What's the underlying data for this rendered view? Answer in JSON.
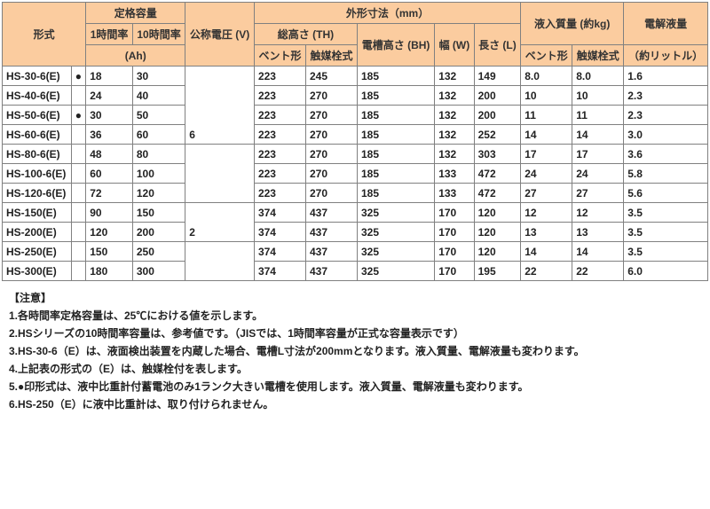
{
  "headers": {
    "model": "形式",
    "rated_capacity": "定格容量",
    "rate_1h": "1時間率",
    "rate_10h": "10時間率",
    "ah": "(Ah)",
    "nominal_voltage": "公称電圧 (V)",
    "dimensions": "外形寸法（mm）",
    "total_height": "総高さ (TH)",
    "vent_type": "ベント形",
    "catalyst_type": "触媒栓式",
    "box_height": "電槽高さ (BH)",
    "width": "幅 (W)",
    "length": "長さ (L)",
    "filled_mass": "液入質量 (約kg)",
    "electrolyte_volume": "電解液量",
    "liters": "（約リットル）"
  },
  "voltage_6": "6",
  "voltage_2": "2",
  "rows": [
    {
      "model": "HS-30-6(E)",
      "mark": "●",
      "ah1": "18",
      "ah10": "30",
      "th_v": "223",
      "th_c": "245",
      "bh": "185",
      "w": "132",
      "l": "149",
      "m_v": "8.0",
      "m_c": "8.0",
      "el": "1.6"
    },
    {
      "model": "HS-40-6(E)",
      "mark": "",
      "ah1": "24",
      "ah10": "40",
      "th_v": "223",
      "th_c": "270",
      "bh": "185",
      "w": "132",
      "l": "200",
      "m_v": "10",
      "m_c": "10",
      "el": "2.3"
    },
    {
      "model": "HS-50-6(E)",
      "mark": "●",
      "ah1": "30",
      "ah10": "50",
      "th_v": "223",
      "th_c": "270",
      "bh": "185",
      "w": "132",
      "l": "200",
      "m_v": "11",
      "m_c": "11",
      "el": "2.3"
    },
    {
      "model": "HS-60-6(E)",
      "mark": "",
      "ah1": "36",
      "ah10": "60",
      "th_v": "223",
      "th_c": "270",
      "bh": "185",
      "w": "132",
      "l": "252",
      "m_v": "14",
      "m_c": "14",
      "el": "3.0"
    },
    {
      "model": "HS-80-6(E)",
      "mark": "",
      "ah1": "48",
      "ah10": "80",
      "th_v": "223",
      "th_c": "270",
      "bh": "185",
      "w": "132",
      "l": "303",
      "m_v": "17",
      "m_c": "17",
      "el": "3.6"
    },
    {
      "model": "HS-100-6(E)",
      "mark": "",
      "ah1": "60",
      "ah10": "100",
      "th_v": "223",
      "th_c": "270",
      "bh": "185",
      "w": "133",
      "l": "472",
      "m_v": "24",
      "m_c": "24",
      "el": "5.8"
    },
    {
      "model": "HS-120-6(E)",
      "mark": "",
      "ah1": "72",
      "ah10": "120",
      "th_v": "223",
      "th_c": "270",
      "bh": "185",
      "w": "133",
      "l": "472",
      "m_v": "27",
      "m_c": "27",
      "el": "5.6"
    },
    {
      "model": "HS-150(E)",
      "mark": "",
      "ah1": "90",
      "ah10": "150",
      "th_v": "374",
      "th_c": "437",
      "bh": "325",
      "w": "170",
      "l": "120",
      "m_v": "12",
      "m_c": "12",
      "el": "3.5"
    },
    {
      "model": "HS-200(E)",
      "mark": "",
      "ah1": "120",
      "ah10": "200",
      "th_v": "374",
      "th_c": "437",
      "bh": "325",
      "w": "170",
      "l": "120",
      "m_v": "13",
      "m_c": "13",
      "el": "3.5"
    },
    {
      "model": "HS-250(E)",
      "mark": "",
      "ah1": "150",
      "ah10": "250",
      "th_v": "374",
      "th_c": "437",
      "bh": "325",
      "w": "170",
      "l": "120",
      "m_v": "14",
      "m_c": "14",
      "el": "3.5"
    },
    {
      "model": "HS-300(E)",
      "mark": "",
      "ah1": "180",
      "ah10": "300",
      "th_v": "374",
      "th_c": "437",
      "bh": "325",
      "w": "170",
      "l": "195",
      "m_v": "22",
      "m_c": "22",
      "el": "6.0"
    }
  ],
  "notes": {
    "title": "【注意】",
    "n1": "1.各時間率定格容量は、25℃における値を示します。",
    "n2": "2.HSシリーズの10時間率容量は、参考値です。（JISでは、1時間率容量が正式な容量表示です）",
    "n3": "3.HS-30-6（E）は、液面検出装置を内蔵した場合、電槽L寸法が200mmとなります。液入質量、電解液量も変わります。",
    "n4": "4.上記表の形式の（E）は、触媒栓付を表します。",
    "n5": "5.●印形式は、液中比重計付蓄電池のみ1ランク大きい電槽を使用します。液入質量、電解液量も変わります。",
    "n6": "6.HS-250（E）に液中比重計は、取り付けられません。"
  }
}
